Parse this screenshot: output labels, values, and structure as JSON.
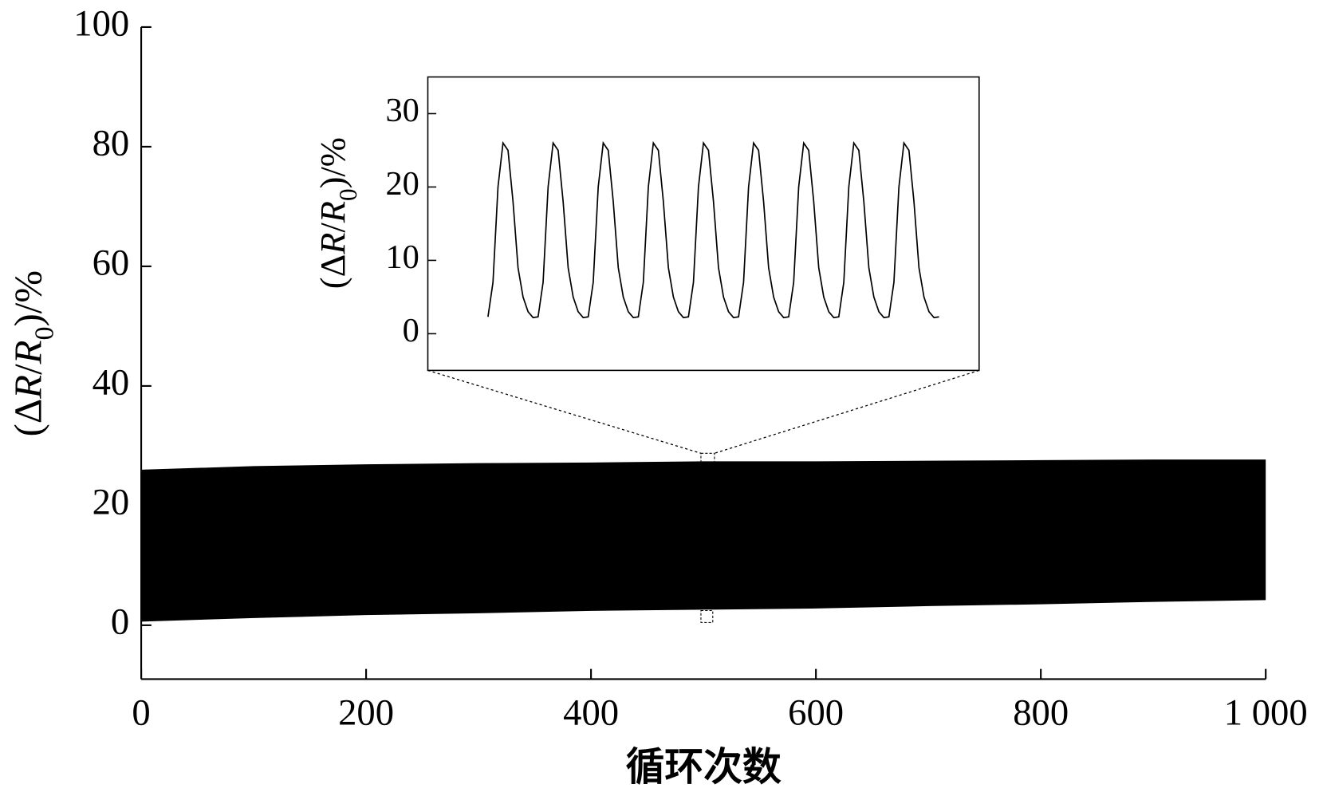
{
  "chart_data": [
    {
      "type": "band",
      "xlabel": "循环次数",
      "ylabel": "(ΔR/R0)/%",
      "x": [
        0,
        100,
        200,
        300,
        400,
        500,
        600,
        700,
        800,
        900,
        1000
      ],
      "upper": [
        26,
        26.6,
        26.9,
        27.1,
        27.2,
        27.4,
        27.4,
        27.5,
        27.6,
        27.7,
        27.7
      ],
      "lower": [
        0.6,
        1.2,
        1.7,
        2.0,
        2.4,
        2.6,
        2.8,
        3.2,
        3.5,
        3.9,
        4.2
      ],
      "color": "#000000",
      "xlim": [
        0,
        1000
      ],
      "xticks": [
        0,
        200,
        400,
        600,
        800,
        {
          "value": 1000,
          "label": "1 000"
        }
      ],
      "ylim": [
        -9,
        100
      ],
      "yticks": [
        0,
        20,
        40,
        60,
        80,
        100
      ]
    },
    {
      "type": "line",
      "ylabel": "(ΔR/R0)/%",
      "x": [
        1.2,
        1.3,
        1.4,
        1.5,
        1.6,
        1.7,
        1.8,
        1.9,
        2.0,
        2.1,
        2.2,
        2.3,
        2.4,
        2.5,
        2.6,
        2.7,
        2.8,
        2.9,
        3.0,
        3.1,
        3.2,
        3.3,
        3.4,
        3.5,
        3.6,
        3.7,
        3.8,
        3.9,
        4.0,
        4.1,
        4.2,
        4.3,
        4.4,
        4.5,
        4.6,
        4.7,
        4.8,
        4.9,
        5.0,
        5.1,
        5.2,
        5.3,
        5.4,
        5.5,
        5.6,
        5.7,
        5.8,
        5.9,
        6.0,
        6.1,
        6.2,
        6.3,
        6.4,
        6.5,
        6.6,
        6.7,
        6.8,
        6.9,
        7.0,
        7.1,
        7.2,
        7.3,
        7.4,
        7.5,
        7.6,
        7.7,
        7.8,
        7.9,
        8.0,
        8.1,
        8.2,
        8.3,
        8.4,
        8.5,
        8.6,
        8.7,
        8.8,
        8.9,
        9.0,
        9.1,
        9.2,
        9.3,
        9.4,
        9.5,
        9.6,
        9.7,
        9.8,
        9.9,
        10.0,
        10.1,
        10.2
      ],
      "values": [
        2.3,
        7,
        20,
        26,
        25,
        18,
        9,
        5,
        3,
        2.2,
        2.3,
        7,
        20,
        26,
        25,
        18,
        9,
        5,
        3,
        2.2,
        2.3,
        7,
        20,
        26,
        25,
        18,
        9,
        5,
        3,
        2.2,
        2.3,
        7,
        20,
        26,
        25,
        18,
        9,
        5,
        3,
        2.2,
        2.3,
        7,
        20,
        26,
        25,
        18,
        9,
        5,
        3,
        2.2,
        2.3,
        7,
        20,
        26,
        25,
        18,
        9,
        5,
        3,
        2.2,
        2.3,
        7,
        20,
        26,
        25,
        18,
        9,
        5,
        3,
        2.2,
        2.3,
        7,
        20,
        26,
        25,
        18,
        9,
        5,
        3,
        2.2,
        2.3,
        7,
        20,
        26,
        25,
        18,
        9,
        5,
        3,
        2.2,
        2.3
      ],
      "color": "#000000",
      "xlim": [
        0,
        11
      ],
      "ylim": [
        -5,
        35
      ],
      "yticks": [
        0,
        10,
        20,
        30
      ]
    }
  ]
}
